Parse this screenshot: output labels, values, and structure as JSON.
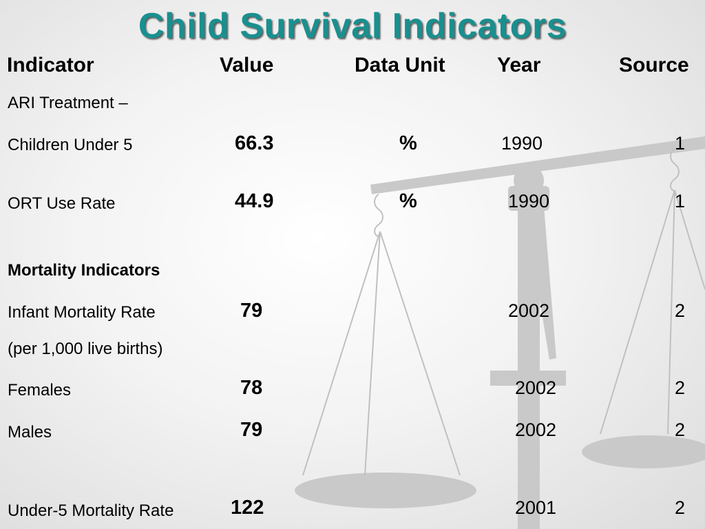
{
  "title": "Child Survival Indicators",
  "headers": {
    "indicator": "Indicator",
    "value": "Value",
    "unit": "Data Unit",
    "year": "Year",
    "source": "Source"
  },
  "rows": [
    {
      "label": "ARI Treatment –"
    },
    {
      "label": "Children Under 5",
      "value": "66.3",
      "unit": "%",
      "year": "1990",
      "source": "1"
    },
    {
      "label": "ORT Use Rate",
      "value": "44.9",
      "unit": "%",
      "year": "1990",
      "source": "1"
    },
    {
      "label": "Mortality Indicators"
    },
    {
      "label": "Infant Mortality Rate",
      "value": "79",
      "year": "2002",
      "source": "2"
    },
    {
      "label": "(per 1,000 live births)"
    },
    {
      "label": "Females",
      "value": "78",
      "year": "2002",
      "source": "2"
    },
    {
      "label": "Males",
      "value": "79",
      "year": "2002",
      "source": "2"
    },
    {
      "label": "Under-5 Mortality Rate",
      "value": "122",
      "year": "2001",
      "source": "2"
    }
  ],
  "background_icon": "balance-scale-icon",
  "colors": {
    "title": "#1a8f8f",
    "background": "#f3f3f3"
  }
}
